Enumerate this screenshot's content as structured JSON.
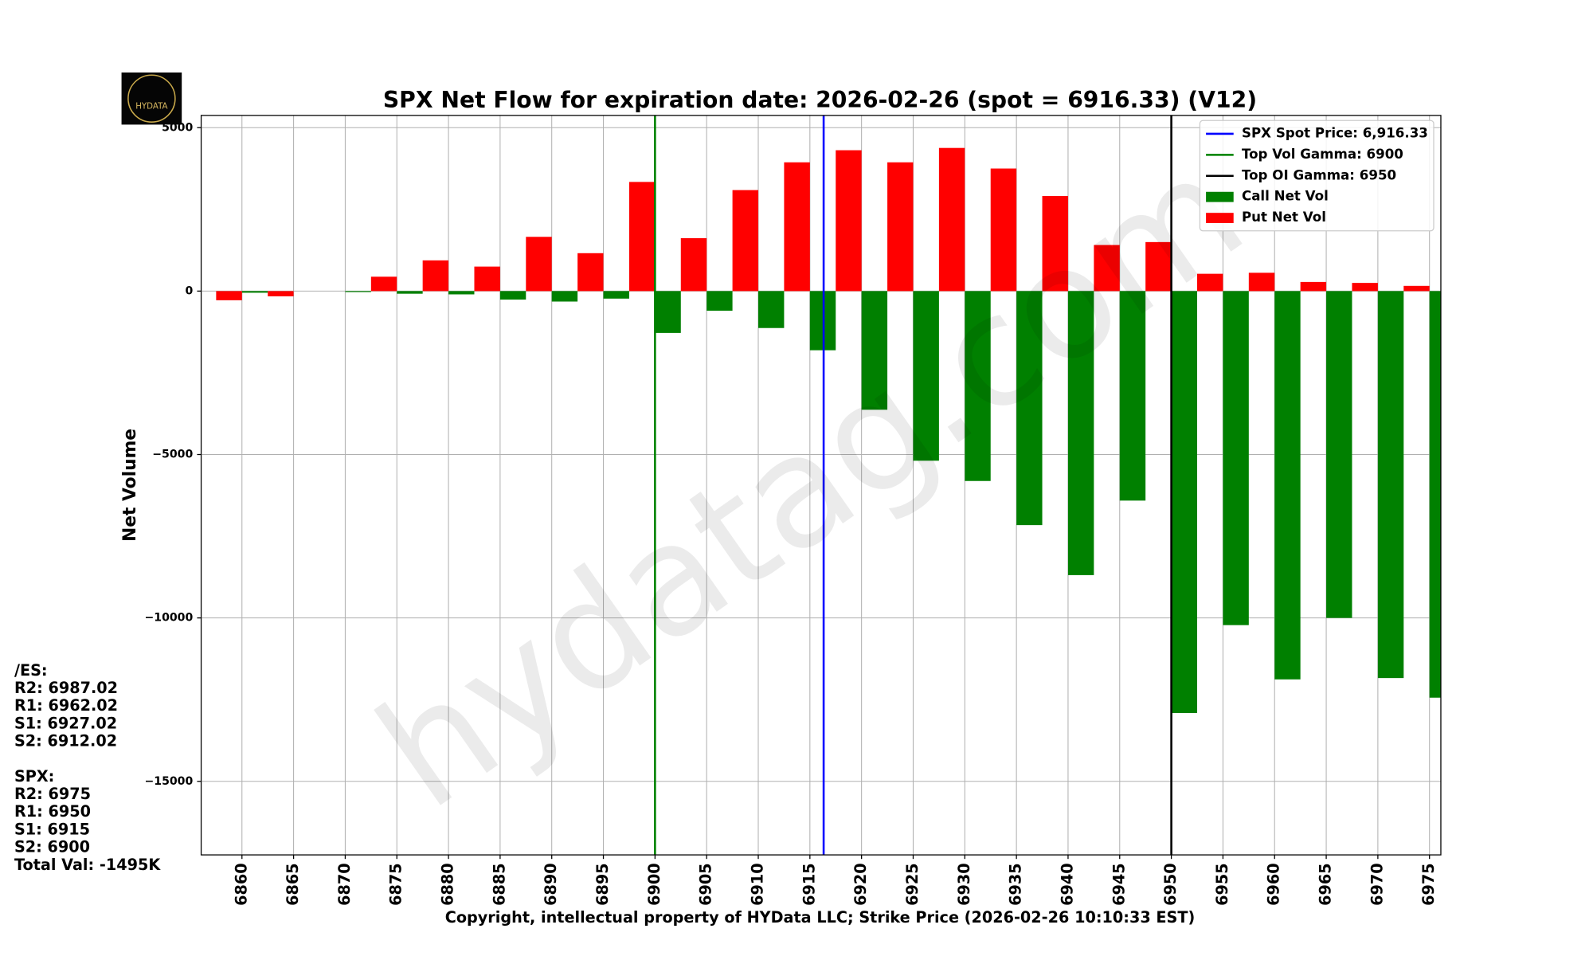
{
  "chart_data": {
    "type": "bar",
    "title": "SPX Net Flow for expiration date: 2026-02-26 (spot = 6916.33) (V12)",
    "ylabel": "Net Volume",
    "xlabel": "Copyright, intellectual property of HYData LLC; Strike Price (2026-02-26 10:10:33 EST)",
    "watermark": "hydatag.com",
    "logo_text": "HYDATA",
    "x": [
      6860,
      6865,
      6870,
      6875,
      6880,
      6885,
      6890,
      6895,
      6900,
      6905,
      6910,
      6915,
      6920,
      6925,
      6930,
      6935,
      6940,
      6945,
      6950,
      6955,
      6960,
      6965,
      6970,
      6975
    ],
    "bar_width": 2.5,
    "series": [
      {
        "name": "Call Net Vol",
        "color": "#008000",
        "side": "right",
        "values": [
          -50,
          0,
          -30,
          -80,
          -100,
          -260,
          -320,
          -230,
          -1280,
          -600,
          -1130,
          -1810,
          -3630,
          -5190,
          -5810,
          -7160,
          -8690,
          -6410,
          -12910,
          -10220,
          -11880,
          -10000,
          -11840,
          -12440
        ]
      },
      {
        "name": "Put Net Vol",
        "color": "#ff0000",
        "side": "left",
        "values": [
          -280,
          -160,
          0,
          440,
          940,
          750,
          1660,
          1160,
          3340,
          1620,
          3090,
          3940,
          4310,
          3940,
          4380,
          3750,
          2910,
          1410,
          1500,
          530,
          560,
          280,
          250,
          160
        ]
      }
    ],
    "vlines": [
      {
        "name": "SPX Spot Price: 6,916.33",
        "value": 6916.33,
        "color": "#0000ff"
      },
      {
        "name": "Top Vol Gamma: 6900",
        "value": 6900,
        "color": "#008000"
      },
      {
        "name": "Top OI Gamma: 6950",
        "value": 6950,
        "color": "#000000"
      }
    ],
    "xlim": [
      6856.05,
      6976.1
    ],
    "ylim": [
      -17250,
      5375
    ],
    "xticks": [
      6860,
      6865,
      6870,
      6875,
      6880,
      6885,
      6890,
      6895,
      6900,
      6905,
      6910,
      6915,
      6920,
      6925,
      6930,
      6935,
      6940,
      6945,
      6950,
      6955,
      6960,
      6965,
      6970,
      6975
    ],
    "yticks": [
      {
        "value": -15000,
        "label": "−15000"
      },
      {
        "value": -10000,
        "label": "−10000"
      },
      {
        "value": -5000,
        "label": "−5000"
      },
      0,
      5000
    ],
    "grid": true,
    "legend": "upper right",
    "levels": [
      [
        "/ES:",
        "R2: 6987.02",
        "R1: 6962.02",
        "S1: 6927.02",
        "S2: 6912.02"
      ],
      [
        "SPX:",
        "R2: 6975",
        "R1: 6950",
        "S1: 6915",
        "S2: 6900",
        "Total Val: -1495K"
      ]
    ]
  }
}
